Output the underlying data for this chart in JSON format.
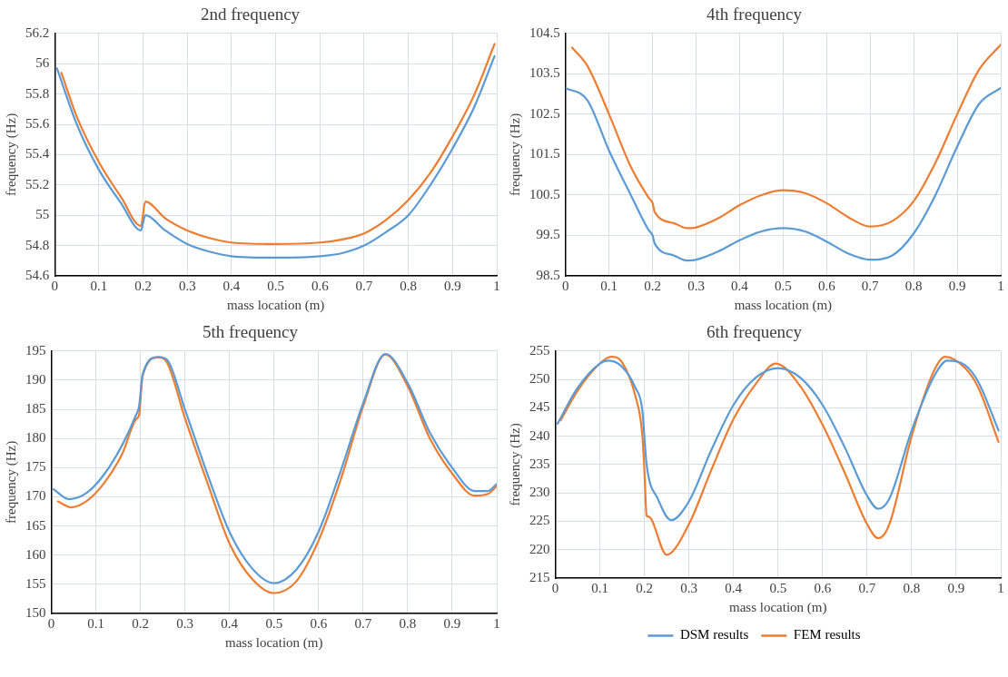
{
  "chart_data": [
    {
      "type": "line",
      "title": "2nd frequency",
      "xlabel": "mass location (m)",
      "ylabel": "frequency (Hz)",
      "xlim": [
        0,
        1
      ],
      "xticks": [
        0,
        0.1,
        0.2,
        0.3,
        0.4,
        0.5,
        0.6,
        0.7,
        0.8,
        0.9,
        1
      ],
      "ylim": [
        54.6,
        56.2
      ],
      "yticks": [
        54.6,
        54.8,
        55,
        55.2,
        55.4,
        55.6,
        55.8,
        56,
        56.2
      ],
      "grid": true,
      "marker": "none",
      "series": [
        {
          "color": "#5b9bd5",
          "x": [
            0.005,
            0.05,
            0.1,
            0.15,
            0.195,
            0.205,
            0.25,
            0.3,
            0.35,
            0.4,
            0.5,
            0.6,
            0.65,
            0.7,
            0.75,
            0.8,
            0.85,
            0.9,
            0.95,
            0.995
          ],
          "values": [
            55.97,
            55.6,
            55.3,
            55.08,
            54.9,
            55.0,
            54.9,
            54.81,
            54.76,
            54.73,
            54.72,
            54.73,
            54.75,
            54.8,
            54.89,
            55.0,
            55.2,
            55.44,
            55.72,
            56.05
          ]
        },
        {
          "color": "#ed7d31",
          "x": [
            0.015,
            0.05,
            0.1,
            0.15,
            0.195,
            0.205,
            0.25,
            0.3,
            0.35,
            0.4,
            0.5,
            0.6,
            0.65,
            0.7,
            0.75,
            0.8,
            0.85,
            0.9,
            0.95,
            0.995
          ],
          "values": [
            55.94,
            55.65,
            55.35,
            55.12,
            54.93,
            55.09,
            54.98,
            54.9,
            54.85,
            54.82,
            54.81,
            54.82,
            54.84,
            54.88,
            54.97,
            55.1,
            55.28,
            55.52,
            55.8,
            56.13
          ]
        }
      ]
    },
    {
      "type": "line",
      "title": "4th frequency",
      "xlabel": "mass location (m)",
      "ylabel": "frequency (Hz)",
      "xlim": [
        0,
        1
      ],
      "xticks": [
        0,
        0.1,
        0.2,
        0.3,
        0.4,
        0.5,
        0.6,
        0.7,
        0.8,
        0.9,
        1
      ],
      "ylim": [
        98.5,
        104.5
      ],
      "yticks": [
        98.5,
        99.5,
        100.5,
        101.5,
        102.5,
        103.5,
        104.5
      ],
      "grid": true,
      "marker": "none",
      "series": [
        {
          "color": "#5b9bd5",
          "x": [
            0,
            0.05,
            0.1,
            0.15,
            0.19,
            0.2,
            0.205,
            0.25,
            0.28,
            0.3,
            0.35,
            0.4,
            0.45,
            0.5,
            0.55,
            0.6,
            0.65,
            0.7,
            0.75,
            0.8,
            0.85,
            0.9,
            0.95,
            1
          ],
          "values": [
            103.15,
            102.85,
            101.6,
            100.5,
            99.65,
            99.5,
            99.3,
            99.0,
            98.88,
            98.9,
            99.1,
            99.38,
            99.6,
            99.68,
            99.6,
            99.35,
            99.05,
            98.9,
            99.0,
            99.55,
            100.5,
            101.7,
            102.75,
            103.15
          ]
        },
        {
          "color": "#ed7d31",
          "x": [
            0.015,
            0.05,
            0.1,
            0.15,
            0.19,
            0.2,
            0.205,
            0.25,
            0.28,
            0.3,
            0.35,
            0.4,
            0.45,
            0.5,
            0.55,
            0.6,
            0.65,
            0.7,
            0.75,
            0.8,
            0.85,
            0.9,
            0.95,
            1
          ],
          "values": [
            104.15,
            103.7,
            102.5,
            101.2,
            100.45,
            100.3,
            100.08,
            99.8,
            99.68,
            99.7,
            99.92,
            100.25,
            100.5,
            100.62,
            100.55,
            100.3,
            99.95,
            99.72,
            99.85,
            100.35,
            101.3,
            102.5,
            103.6,
            104.22
          ]
        }
      ]
    },
    {
      "type": "line",
      "title": "5th frequency",
      "xlabel": "mass location (m)",
      "ylabel": "frequency (Hz)",
      "xlim": [
        0,
        1
      ],
      "xticks": [
        0,
        0.1,
        0.2,
        0.3,
        0.4,
        0.5,
        0.6,
        0.7,
        0.8,
        0.9,
        1
      ],
      "ylim": [
        150,
        195
      ],
      "yticks": [
        150,
        155,
        160,
        165,
        170,
        175,
        180,
        185,
        190,
        195
      ],
      "grid": true,
      "marker": "none",
      "series": [
        {
          "color": "#5b9bd5",
          "x": [
            0.005,
            0.04,
            0.08,
            0.12,
            0.16,
            0.19,
            0.197,
            0.205,
            0.24,
            0.26,
            0.3,
            0.35,
            0.4,
            0.45,
            0.5,
            0.55,
            0.6,
            0.65,
            0.7,
            0.75,
            0.8,
            0.85,
            0.9,
            0.95,
            0.98,
            1
          ],
          "values": [
            171.3,
            169.6,
            170.7,
            174,
            179,
            184,
            185.5,
            191,
            194,
            193.5,
            185,
            174,
            164,
            157.8,
            155.2,
            157.5,
            164,
            174.5,
            186,
            194.5,
            189.5,
            181,
            175,
            171,
            171,
            172.2
          ]
        },
        {
          "color": "#ed7d31",
          "x": [
            0.015,
            0.045,
            0.08,
            0.12,
            0.16,
            0.19,
            0.197,
            0.205,
            0.24,
            0.26,
            0.3,
            0.35,
            0.4,
            0.45,
            0.5,
            0.55,
            0.6,
            0.65,
            0.7,
            0.75,
            0.8,
            0.85,
            0.9,
            0.95,
            0.98,
            1
          ],
          "values": [
            169.2,
            168.2,
            169.3,
            172.5,
            177.5,
            183.3,
            184,
            190.7,
            193.9,
            193,
            183.5,
            172.5,
            162,
            156,
            153.5,
            155.5,
            162.5,
            173,
            185.5,
            194.4,
            189,
            180,
            174,
            170.2,
            170.5,
            171.8
          ]
        }
      ]
    },
    {
      "type": "line",
      "title": "6th frequency",
      "xlabel": "mass location (m)",
      "ylabel": "frequency (Hz)",
      "xlim": [
        0,
        1
      ],
      "xticks": [
        0,
        0.1,
        0.2,
        0.3,
        0.4,
        0.5,
        0.6,
        0.7,
        0.8,
        0.9,
        1
      ],
      "ylim": [
        215,
        255
      ],
      "yticks": [
        215,
        220,
        225,
        230,
        235,
        240,
        245,
        250,
        255
      ],
      "grid": true,
      "marker": "none",
      "legend": "bottom",
      "series": [
        {
          "name": "DSM results",
          "color": "#5b9bd5",
          "x": [
            0.005,
            0.05,
            0.1,
            0.12,
            0.15,
            0.18,
            0.195,
            0.205,
            0.23,
            0.26,
            0.3,
            0.35,
            0.4,
            0.45,
            0.5,
            0.55,
            0.6,
            0.65,
            0.7,
            0.725,
            0.75,
            0.8,
            0.85,
            0.88,
            0.92,
            0.95,
            0.995
          ],
          "values": [
            242.2,
            248.5,
            252.8,
            253.3,
            252.2,
            248.5,
            244.8,
            235,
            229,
            225.2,
            228.5,
            237.5,
            245.5,
            250.3,
            252,
            250.3,
            245.5,
            238,
            229.5,
            227.2,
            229,
            241,
            250.5,
            253.3,
            252.5,
            249.5,
            241
          ]
        },
        {
          "name": "FEM results",
          "color": "#ed7d31",
          "x": [
            0.012,
            0.05,
            0.1,
            0.125,
            0.15,
            0.18,
            0.195,
            0.2,
            0.205,
            0.21,
            0.25,
            0.3,
            0.35,
            0.4,
            0.45,
            0.495,
            0.55,
            0.6,
            0.65,
            0.7,
            0.725,
            0.75,
            0.8,
            0.85,
            0.875,
            0.92,
            0.95,
            0.995
          ],
          "values": [
            242.8,
            248,
            252.8,
            254,
            253,
            247,
            240.5,
            234,
            226,
            225.8,
            219.1,
            224.5,
            234,
            243,
            249.2,
            252.8,
            248.8,
            242,
            233.5,
            224.5,
            222,
            224.5,
            240,
            251.5,
            254,
            252,
            248.5,
            239
          ]
        }
      ]
    }
  ]
}
